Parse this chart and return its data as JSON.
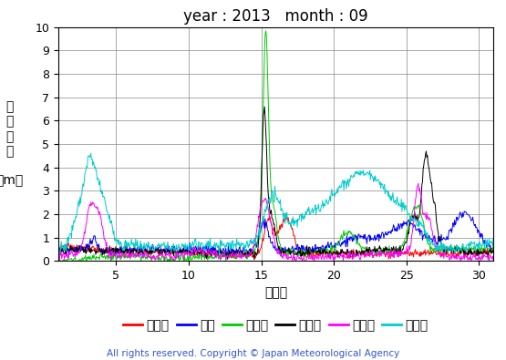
{
  "title": "year : 2013   month : 09",
  "xlabel": "（日）",
  "ylabel_chars": [
    "有",
    "義",
    "波",
    "高",
    "",
    "（m）"
  ],
  "xlim": [
    1,
    31
  ],
  "ylim": [
    0,
    10
  ],
  "yticks": [
    0,
    1,
    2,
    3,
    4,
    5,
    6,
    7,
    8,
    9,
    10
  ],
  "xticks": [
    5,
    10,
    15,
    20,
    25,
    30
  ],
  "copyright": "All rights reserved. Copyright © Japan Meteorological Agency",
  "legend": [
    {
      "label": "上ノ国",
      "color": "#FF0000"
    },
    {
      "label": "唐桑",
      "color": "#0000FF"
    },
    {
      "label": "石廈崎",
      "color": "#00CC00"
    },
    {
      "label": "経ヶ尬",
      "color": "#000000"
    },
    {
      "label": "生月島",
      "color": "#FF00FF"
    },
    {
      "label": "屋久島",
      "color": "#00CCCC"
    }
  ],
  "background_color": "#FFFFFF",
  "grid_color": "#888888",
  "title_fontsize": 12,
  "axis_fontsize": 10,
  "legend_fontsize": 10,
  "copyright_fontsize": 7.5,
  "line_width": 0.7
}
